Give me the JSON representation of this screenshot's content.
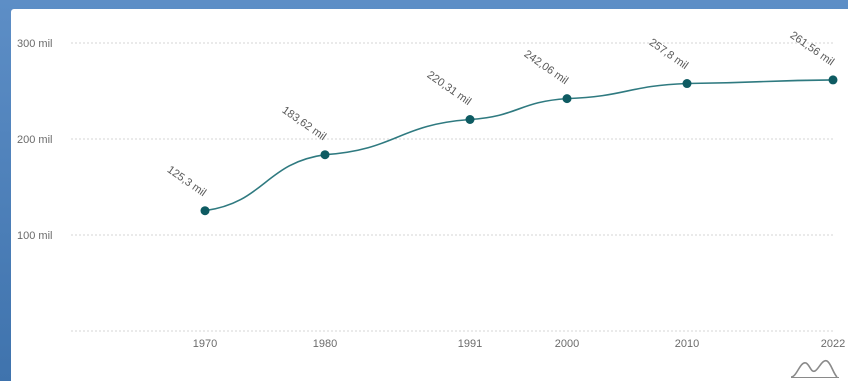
{
  "chart_data": {
    "type": "line",
    "title": "",
    "xlabel": "",
    "ylabel": "",
    "categories": [
      "1970",
      "1980",
      "1991",
      "2000",
      "2010",
      "2022"
    ],
    "series": [
      {
        "values": [
          125.3,
          183.62,
          220.31,
          242.06,
          257.8,
          261.56
        ],
        "data_labels": [
          "125,3 mil",
          "183,62 mil",
          "220,31 mil",
          "242,06 mil",
          "257,8 mil",
          "261,56 mil"
        ]
      }
    ],
    "y_ticks": [
      {
        "value": 100,
        "label": "100 mil"
      },
      {
        "value": 200,
        "label": "200 mil"
      },
      {
        "value": 300,
        "label": "300 mil"
      }
    ],
    "ylim": [
      0,
      300
    ],
    "grid": true,
    "colors": {
      "line": "#2f7a80",
      "marker": "#0e5b62",
      "grid": "#d4d4d4"
    },
    "icon": "line-chart-icon"
  }
}
